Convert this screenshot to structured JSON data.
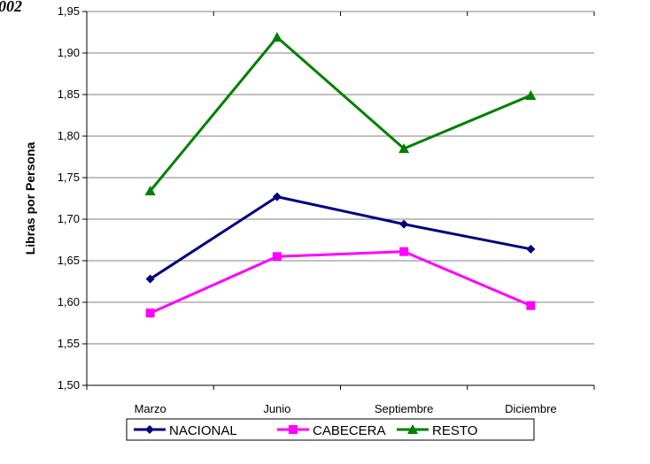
{
  "chart_data": {
    "type": "line",
    "title_fragment": "002",
    "ylabel": "Libras por Persona",
    "xlabel": "",
    "categories": [
      "Marzo",
      "Junio",
      "Septiembre",
      "Diciembre"
    ],
    "ylim": [
      1.5,
      1.95
    ],
    "ytick_step": 0.05,
    "ytick_labels": [
      "1,50",
      "1,55",
      "1,60",
      "1,65",
      "1,70",
      "1,75",
      "1,80",
      "1,85",
      "1,90",
      "1,95"
    ],
    "grid": "horizontal",
    "legend_position": "bottom",
    "series": [
      {
        "name": "NACIONAL",
        "values": [
          1.628,
          1.727,
          1.694,
          1.664
        ],
        "color": "#000080",
        "marker": "diamond"
      },
      {
        "name": "CABECERA",
        "values": [
          1.587,
          1.655,
          1.661,
          1.596
        ],
        "color": "#ff00ff",
        "marker": "square"
      },
      {
        "name": "RESTO",
        "values": [
          1.734,
          1.919,
          1.785,
          1.849
        ],
        "color": "#008000",
        "marker": "triangle"
      }
    ]
  }
}
